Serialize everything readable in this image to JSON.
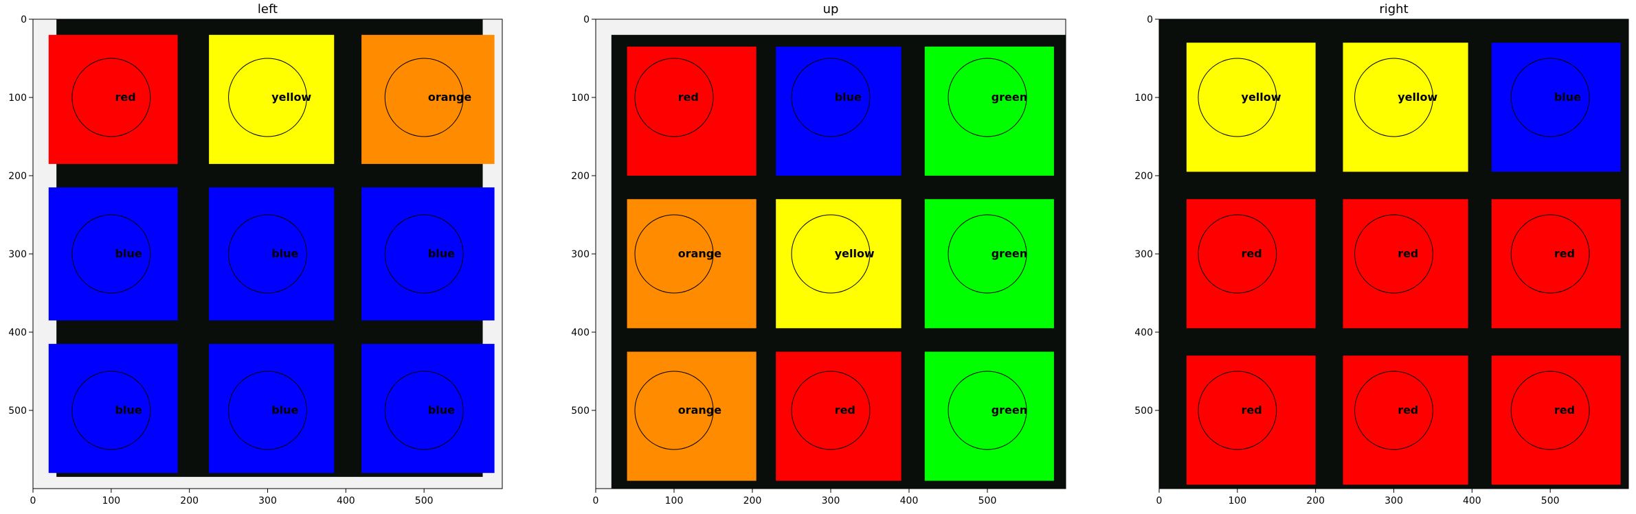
{
  "chart_data": [
    {
      "type": "heatmap",
      "title": "left",
      "xlim": [
        0,
        600
      ],
      "ylim": [
        600,
        0
      ],
      "x_ticks": [
        0,
        100,
        200,
        300,
        400,
        500
      ],
      "y_ticks": [
        0,
        100,
        200,
        300,
        400,
        500
      ],
      "cells": [
        [
          {
            "label": "red"
          },
          {
            "label": "yellow"
          },
          {
            "label": "orange"
          }
        ],
        [
          {
            "label": "blue"
          },
          {
            "label": "blue"
          },
          {
            "label": "blue"
          }
        ],
        [
          {
            "label": "blue"
          },
          {
            "label": "blue"
          },
          {
            "label": "blue"
          }
        ]
      ],
      "cell_centers": [
        100,
        300,
        500
      ],
      "circle_radius": 50
    },
    {
      "type": "heatmap",
      "title": "up",
      "xlim": [
        0,
        600
      ],
      "ylim": [
        600,
        0
      ],
      "x_ticks": [
        0,
        100,
        200,
        300,
        400,
        500
      ],
      "y_ticks": [
        0,
        100,
        200,
        300,
        400,
        500
      ],
      "cells": [
        [
          {
            "label": "red"
          },
          {
            "label": "blue"
          },
          {
            "label": "green"
          }
        ],
        [
          {
            "label": "orange"
          },
          {
            "label": "yellow"
          },
          {
            "label": "green"
          }
        ],
        [
          {
            "label": "orange"
          },
          {
            "label": "red"
          },
          {
            "label": "green"
          }
        ]
      ],
      "cell_centers": [
        100,
        300,
        500
      ],
      "circle_radius": 50
    },
    {
      "type": "heatmap",
      "title": "right",
      "xlim": [
        0,
        600
      ],
      "ylim": [
        600,
        0
      ],
      "x_ticks": [
        0,
        100,
        200,
        300,
        400,
        500
      ],
      "y_ticks": [
        0,
        100,
        200,
        300,
        400,
        500
      ],
      "cells": [
        [
          {
            "label": "yellow"
          },
          {
            "label": "yellow"
          },
          {
            "label": "blue"
          }
        ],
        [
          {
            "label": "red"
          },
          {
            "label": "red"
          },
          {
            "label": "red"
          }
        ],
        [
          {
            "label": "red"
          },
          {
            "label": "red"
          },
          {
            "label": "red"
          }
        ]
      ],
      "cell_centers": [
        100,
        300,
        500
      ],
      "circle_radius": 50
    }
  ],
  "colors": {
    "red": "#ff0000",
    "yellow": "#ffff00",
    "orange": "#ff8c00",
    "blue": "#0000ff",
    "green": "#00ff00",
    "gap": "#0a0e0a",
    "background_edge": "#e8e8e8"
  }
}
